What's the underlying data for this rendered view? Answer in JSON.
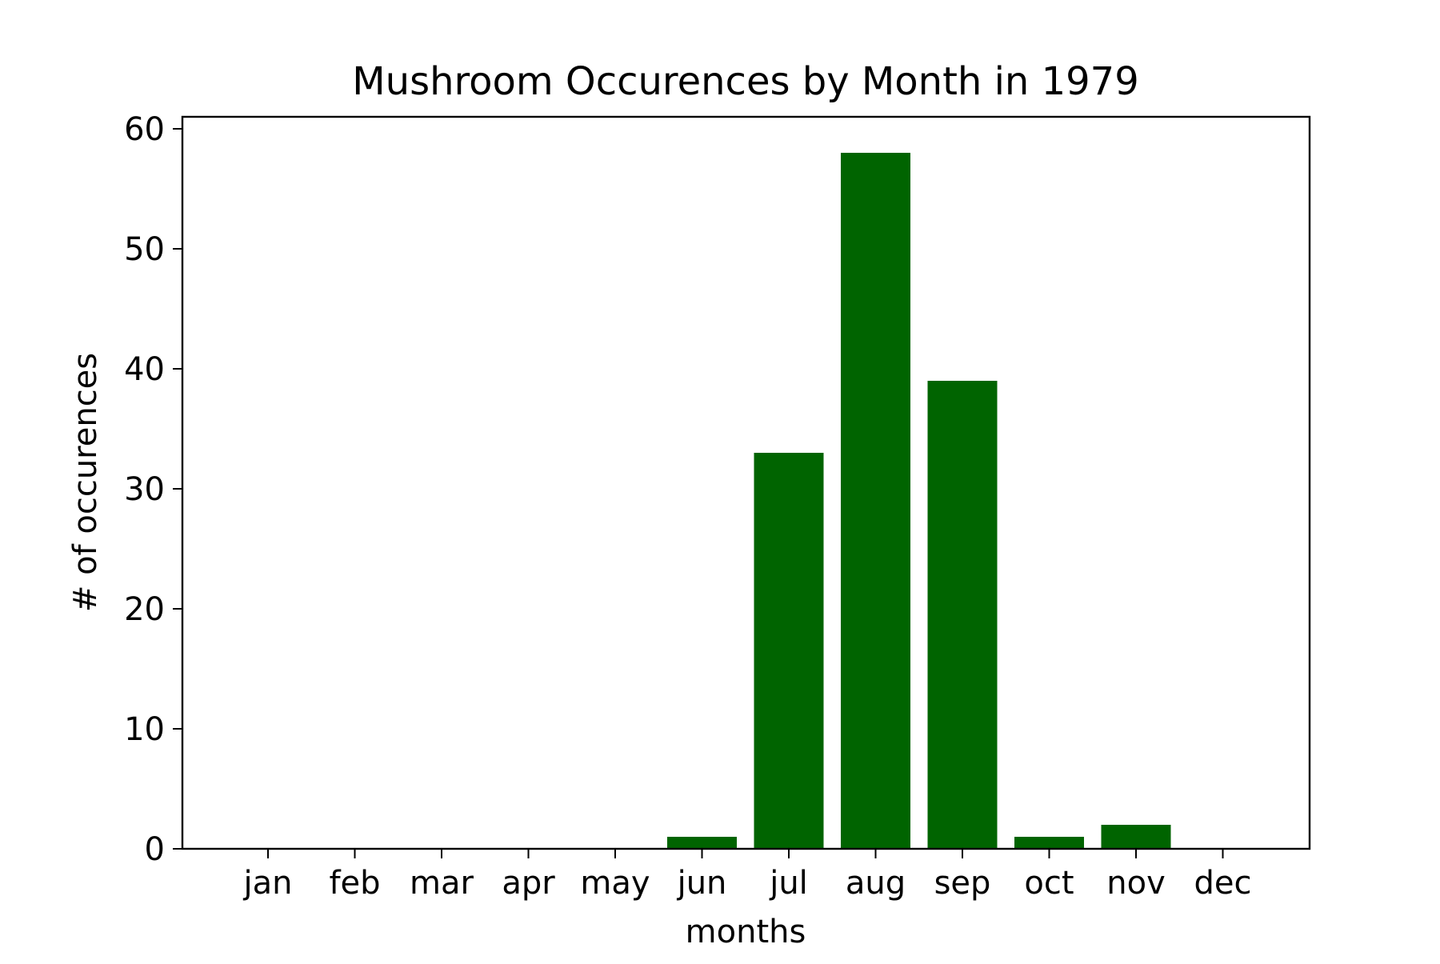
{
  "chart_data": {
    "type": "bar",
    "title": "Mushroom Occurences by Month in 1979",
    "xlabel": "months",
    "ylabel": "# of occurences",
    "categories": [
      "jan",
      "feb",
      "mar",
      "apr",
      "may",
      "jun",
      "jul",
      "aug",
      "sep",
      "oct",
      "nov",
      "dec"
    ],
    "values": [
      0,
      0,
      0,
      0,
      0,
      1,
      33,
      58,
      39,
      1,
      2,
      0
    ],
    "ylim": [
      0,
      61
    ],
    "yticks": [
      0,
      10,
      20,
      30,
      40,
      50,
      60
    ],
    "grid": false,
    "colors": {
      "bar": "#006400",
      "axis": "#000000"
    }
  }
}
